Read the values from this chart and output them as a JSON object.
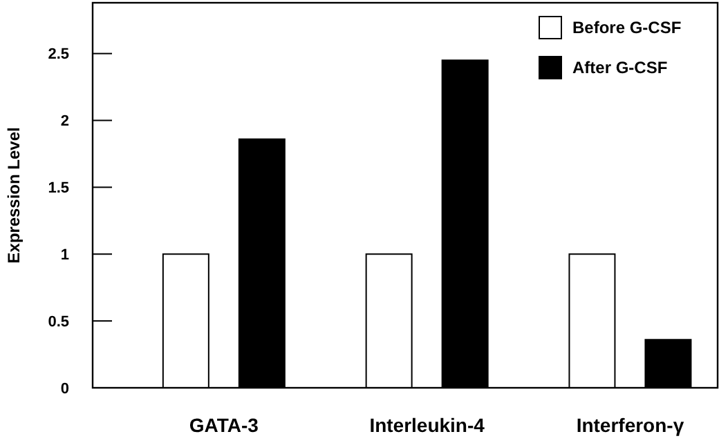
{
  "chart_data": {
    "type": "bar",
    "ylabel": "Expression Level",
    "categories": [
      "GATA-3",
      "Interleukin-4",
      "Interferon-γ"
    ],
    "series": [
      {
        "name": "Before G-CSF",
        "color": "#ffffff",
        "values": [
          1.0,
          1.0,
          1.0
        ]
      },
      {
        "name": "After G-CSF",
        "color": "#000000",
        "values": [
          1.86,
          2.45,
          0.36
        ]
      }
    ],
    "ylim": [
      0,
      2.88
    ],
    "yticks": [
      0,
      0.5,
      1,
      1.5,
      2,
      2.5
    ],
    "legend": "top right",
    "grid": false
  }
}
